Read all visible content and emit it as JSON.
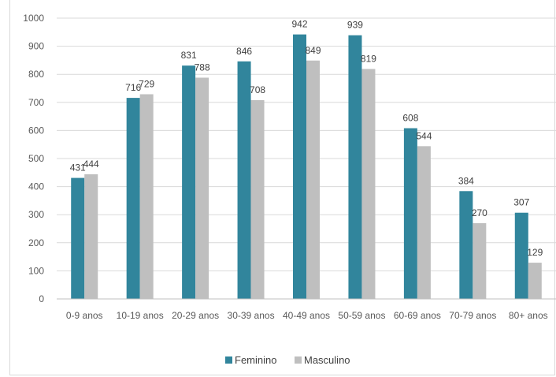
{
  "chart_data": {
    "type": "bar",
    "title": "",
    "xlabel": "",
    "ylabel": "",
    "categories": [
      "0-9 anos",
      "10-19 anos",
      "20-29 anos",
      "30-39 anos",
      "40-49 anos",
      "50-59 anos",
      "60-69 anos",
      "70-79 anos",
      "80+ anos"
    ],
    "series": [
      {
        "name": "Feminino",
        "color": "#31859c",
        "values": [
          431,
          716,
          831,
          846,
          942,
          939,
          608,
          384,
          307
        ]
      },
      {
        "name": "Masculino",
        "color": "#bfbfbf",
        "values": [
          444,
          729,
          788,
          708,
          849,
          819,
          544,
          270,
          129
        ]
      }
    ],
    "ylim": [
      0,
      1000
    ],
    "yticks": [
      0,
      100,
      200,
      300,
      400,
      500,
      600,
      700,
      800,
      900,
      1000
    ],
    "grid": true,
    "legend": "bottom-center"
  }
}
